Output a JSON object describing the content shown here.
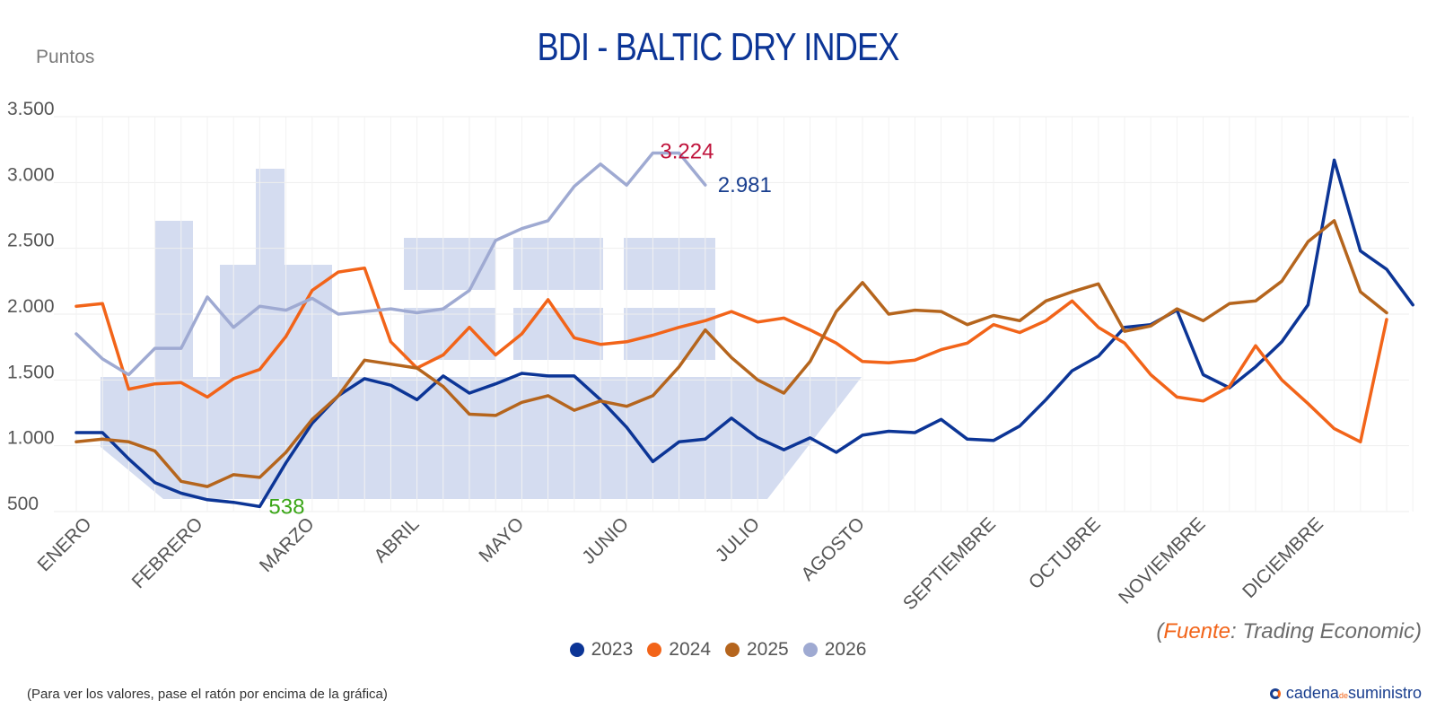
{
  "chart_data": {
    "type": "line",
    "title": "BDI - BALTIC DRY INDEX",
    "ylabel": "Puntos",
    "ylim": [
      500,
      3500
    ],
    "yticks": [
      "3.500",
      "3.000",
      "2.500",
      "2.000",
      "1.500",
      "1.000",
      "500"
    ],
    "ytick_values": [
      3500,
      3000,
      2500,
      2000,
      1500,
      1000,
      500
    ],
    "xlabels": [
      "ENERO",
      "FEBRERO",
      "MARZO",
      "ABRIL",
      "MAYO",
      "JUNIO",
      "JULIO",
      "AGOSTO",
      "SEPTIEMBRE",
      "OCTUBRE",
      "NOVIEMBRE",
      "DICIEMBRE"
    ],
    "xlabel_weeks": [
      0,
      4.25,
      8.5,
      12.5,
      16.5,
      20.5,
      25.5,
      29.5,
      34.5,
      38.5,
      42.5,
      47
    ],
    "grid": true,
    "legend": "bottom",
    "series": [
      {
        "name": "2023",
        "color": "#0c3596",
        "values": [
          1100,
          1100,
          900,
          720,
          640,
          590,
          570,
          538,
          870,
          1170,
          1380,
          1510,
          1460,
          1350,
          1530,
          1400,
          1470,
          1550,
          1530,
          1530,
          1350,
          1140,
          880,
          1030,
          1050,
          1210,
          1060,
          970,
          1060,
          950,
          1080,
          1110,
          1100,
          1200,
          1050,
          1040,
          1150,
          1350,
          1570,
          1680,
          1900,
          1920,
          2030,
          1540,
          1440,
          1600,
          1790,
          2070,
          3170,
          2480,
          2340,
          2070
        ]
      },
      {
        "name": "2024",
        "color": "#f26419",
        "values": [
          2060,
          2080,
          1430,
          1470,
          1480,
          1370,
          1510,
          1580,
          1830,
          2180,
          2320,
          2350,
          1790,
          1590,
          1690,
          1900,
          1690,
          1850,
          2110,
          1820,
          1770,
          1790,
          1840,
          1900,
          1950,
          2020,
          1940,
          1970,
          1880,
          1780,
          1640,
          1630,
          1650,
          1730,
          1780,
          1920,
          1860,
          1950,
          2100,
          1900,
          1780,
          1540,
          1370,
          1340,
          1450,
          1760,
          1500,
          1320,
          1130,
          1030,
          1960
        ]
      },
      {
        "name": "2025",
        "color": "#b5651d",
        "values": [
          1030,
          1050,
          1030,
          960,
          730,
          690,
          780,
          760,
          950,
          1200,
          1380,
          1650,
          1620,
          1590,
          1450,
          1240,
          1230,
          1330,
          1380,
          1270,
          1340,
          1300,
          1380,
          1600,
          1880,
          1670,
          1500,
          1400,
          1640,
          2020,
          2240,
          2000,
          2030,
          2020,
          1920,
          1990,
          1950,
          2100,
          2170,
          2230,
          1870,
          1910,
          2040,
          1950,
          2080,
          2100,
          2250,
          2550,
          2710,
          2170,
          2010
        ]
      },
      {
        "name": "2026",
        "color": "#9faad2",
        "values": [
          1850,
          1660,
          1540,
          1740,
          1740,
          2130,
          1900,
          2060,
          2030,
          2120,
          2000,
          2020,
          2040,
          2010,
          2040,
          2180,
          2560,
          2650,
          2710,
          2970,
          3140,
          2980,
          3224,
          3224,
          2981
        ]
      }
    ],
    "annotations": [
      {
        "series": "2023",
        "text": "538"
      },
      {
        "series": "2026",
        "text": "3.224"
      },
      {
        "series": "2026",
        "text": "2.981"
      }
    ]
  },
  "ylabel_text": "Puntos",
  "source": {
    "prefix": "(",
    "key": "Fuente",
    "rest": ": Trading Economic)"
  },
  "note": "(Para ver los valores, pase el ratón por encima de la gráfica)",
  "brand": {
    "main1": "cadena",
    "sub": "de",
    "main2": "suministro"
  },
  "watermark_color": "#d4dcf0"
}
